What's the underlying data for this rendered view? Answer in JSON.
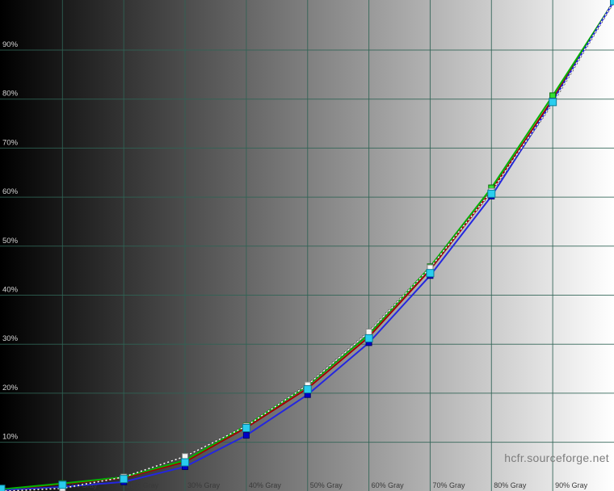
{
  "watermark": "hcfr.sourceforge.net",
  "colors": {
    "background_left": "#000000",
    "background_right": "#ffffff",
    "grid": "#2f6355",
    "x_label": "#3a3a3a",
    "y_label": "#d6d6d6",
    "watermark": "#7d7d7d"
  },
  "chart_data": {
    "type": "line",
    "title": "",
    "xlabel": "",
    "ylabel": "",
    "xlim": [
      0,
      100
    ],
    "ylim": [
      0,
      100
    ],
    "grid": true,
    "legend": false,
    "background": "horizontal gradient black to white",
    "x_ticks": [
      10,
      20,
      30,
      40,
      50,
      60,
      70,
      80,
      90
    ],
    "x_tick_labels": [
      "10% Gray",
      "20% Gray",
      "30% Gray",
      "40% Gray",
      "50% Gray",
      "60% Gray",
      "70% Gray",
      "80% Gray",
      "90% Gray"
    ],
    "y_ticks": [
      10,
      20,
      30,
      40,
      50,
      60,
      70,
      80,
      90
    ],
    "y_tick_labels": [
      "10%",
      "20%",
      "30%",
      "40%",
      "50%",
      "60%",
      "70%",
      "80%",
      "90%"
    ],
    "x": [
      0,
      10,
      20,
      30,
      40,
      50,
      60,
      70,
      80,
      90,
      100
    ],
    "series": [
      {
        "name": "red-component",
        "style": "solid",
        "line_color": "#a50000",
        "line_width": 2,
        "marker_color": "#c00000",
        "marker_border": "#600000",
        "marker_size": 5,
        "values": [
          0.3,
          1.5,
          2.7,
          6.0,
          13.0,
          21.0,
          31.5,
          45.2,
          61.3,
          80.0,
          100
        ]
      },
      {
        "name": "green-component",
        "style": "solid",
        "line_color": "#00b400",
        "line_width": 2,
        "marker_color": "#35e035",
        "marker_border": "#076d07",
        "marker_size": 7,
        "values": [
          0.4,
          1.6,
          2.9,
          6.3,
          13.4,
          21.5,
          32.0,
          45.8,
          61.9,
          80.7,
          100
        ]
      },
      {
        "name": "blue-component",
        "style": "solid",
        "line_color": "#2426e0",
        "line_width": 2,
        "marker_color": "#0000c8",
        "marker_border": "#000070",
        "marker_size": 7,
        "values": [
          0.2,
          0.9,
          1.9,
          5.0,
          11.4,
          19.7,
          30.3,
          44.0,
          60.2,
          79.6,
          100
        ]
      },
      {
        "name": "reference-gamma-2.2",
        "style": "dashed",
        "line_color": "#ffffff",
        "line_casing": "#404040",
        "line_width": 1.5,
        "marker_color": "#f5f5f5",
        "marker_border": "#8a8a8a",
        "marker_size": 7,
        "values": [
          0.0,
          0.6,
          2.9,
          7.1,
          13.3,
          21.7,
          32.5,
          45.6,
          61.2,
          79.3,
          100
        ]
      },
      {
        "name": "measured-luminance",
        "style": "markers-only",
        "line_color": "none",
        "marker_color": "#29cdee",
        "marker_border": "#0c7d97",
        "marker_size": 9,
        "values": [
          0.5,
          1.3,
          2.5,
          5.9,
          12.9,
          20.8,
          31.2,
          44.5,
          60.7,
          79.4,
          100
        ]
      }
    ]
  }
}
